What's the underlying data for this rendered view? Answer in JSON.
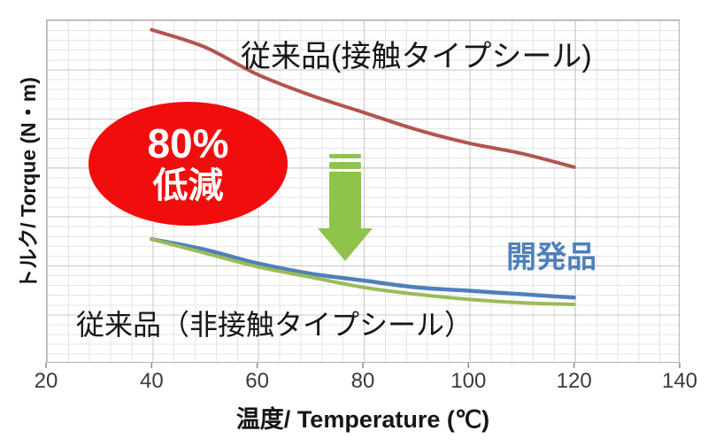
{
  "figure": {
    "callout": {
      "line1": "80%",
      "line2": "低減"
    },
    "labels": {
      "contact_seal": "従来品(接触タイプシール)",
      "developed": "開発品",
      "noncontact_seal": "従来品（非接触タイプシール）"
    },
    "axes": {
      "x_title": "温度/ Temperature (℃)",
      "y_title": "トルク/ Torque (N・m)"
    },
    "colors": {
      "contact_line": "#B2544F",
      "developed_line": "#4E80BB",
      "noncontact_line": "#9BBB59",
      "developed_text": "#4E80BB",
      "arrow_green": "#8FC34C",
      "callout_red": "#F10D0D",
      "callout_text": "#FFFFFF"
    }
  },
  "chart_data": {
    "type": "line",
    "title": "",
    "xlabel": "温度/ Temperature (℃)",
    "ylabel": "トルク/ Torque (N・m)",
    "x_ticks": [
      20,
      40,
      60,
      80,
      100,
      120,
      140
    ],
    "xlim": [
      20,
      140
    ],
    "ylim": [
      0,
      1
    ],
    "y_tick_labels_visible": false,
    "grid": true,
    "x": [
      40,
      50,
      60,
      70,
      80,
      90,
      100,
      110,
      120
    ],
    "series": [
      {
        "name": "従来品(接触タイプシール)",
        "color": "#B2544F",
        "values": [
          0.97,
          0.92,
          0.84,
          0.78,
          0.73,
          0.68,
          0.64,
          0.61,
          0.57
        ]
      },
      {
        "name": "開発品",
        "color": "#4E80BB",
        "values": [
          0.36,
          0.33,
          0.29,
          0.26,
          0.24,
          0.22,
          0.21,
          0.2,
          0.19
        ]
      },
      {
        "name": "従来品（非接触タイプシール）",
        "color": "#9BBB59",
        "values": [
          0.36,
          0.32,
          0.28,
          0.25,
          0.22,
          0.2,
          0.185,
          0.175,
          0.17
        ]
      }
    ],
    "annotations": [
      {
        "type": "ellipse_callout",
        "text": "80% 低減",
        "meaning": "80% torque reduction",
        "x_center": 47
      },
      {
        "type": "down_arrow",
        "x_center": 76
      }
    ]
  }
}
